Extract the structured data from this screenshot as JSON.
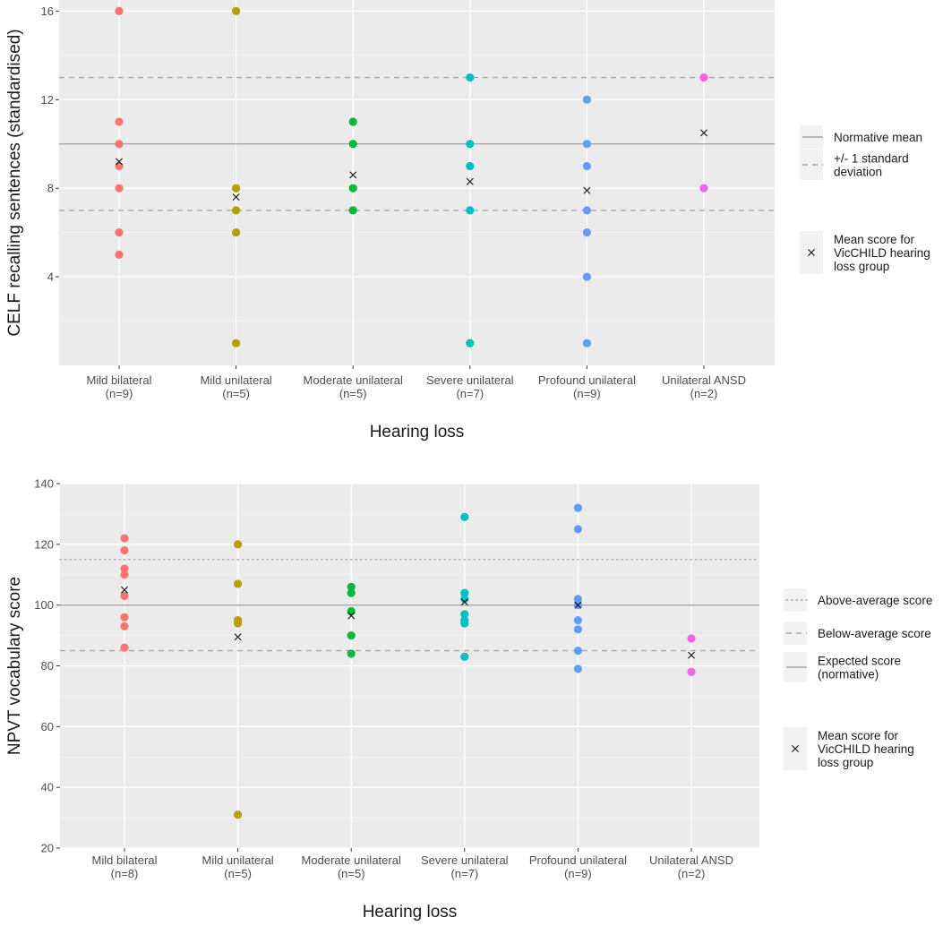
{
  "chart_data": [
    {
      "type": "scatter",
      "title": "",
      "xlabel": "Hearing loss",
      "ylabel": "CELF recalling sentences (standardised)",
      "ylim": [
        0,
        16.5
      ],
      "yticks": [
        4,
        8,
        12,
        16
      ],
      "grid": true,
      "categories": [
        "Mild bilateral",
        "Mild unilateral",
        "Moderate unilateral",
        "Severe unilateral",
        "Profound unilateral",
        "Unilateral ANSD"
      ],
      "category_counts": [
        "(n=9)",
        "(n=5)",
        "(n=5)",
        "(n=7)",
        "(n=9)",
        "(n=2)"
      ],
      "colors": [
        "#F8766D",
        "#B79F00",
        "#00BA38",
        "#00BFC4",
        "#619CFF",
        "#F564E3"
      ],
      "points": [
        [
          16,
          11,
          10,
          9,
          8,
          6,
          5
        ],
        [
          16,
          8,
          7,
          6,
          1
        ],
        [
          11,
          10,
          8,
          7
        ],
        [
          13,
          10,
          9,
          7,
          1
        ],
        [
          12,
          10,
          9,
          7,
          6,
          4,
          1
        ],
        [
          13,
          8
        ]
      ],
      "means": [
        9.2,
        7.6,
        8.6,
        8.3,
        7.9,
        10.5
      ],
      "reference_lines": [
        {
          "name": "Normative mean",
          "value": 10,
          "style": "solid"
        },
        {
          "name": "+/- 1 standard deviation (upper)",
          "value": 13,
          "style": "dashed"
        },
        {
          "name": "+/- 1 standard deviation (lower)",
          "value": 7,
          "style": "dashed"
        }
      ],
      "legend": {
        "placement": "right",
        "lines": [
          {
            "style": "solid",
            "label_lines": [
              "Normative mean"
            ]
          },
          {
            "style": "dashed",
            "label_lines": [
              "+/- 1 standard",
              "deviation"
            ]
          }
        ],
        "mean_marker": {
          "label_lines": [
            "Mean score for",
            "VicCHILD hearing",
            "loss group"
          ]
        }
      }
    },
    {
      "type": "scatter",
      "title": "",
      "xlabel": "Hearing loss",
      "ylabel": "NPVT vocabulary score",
      "ylim": [
        20,
        140
      ],
      "yticks": [
        20,
        40,
        60,
        80,
        100,
        120,
        140
      ],
      "grid": true,
      "categories": [
        "Mild bilateral",
        "Mild unilateral",
        "Moderate unilateral",
        "Severe unilateral",
        "Profound unilateral",
        "Unilateral ANSD"
      ],
      "category_counts": [
        "(n=8)",
        "(n=5)",
        "(n=5)",
        "(n=7)",
        "(n=9)",
        "(n=2)"
      ],
      "colors": [
        "#F8766D",
        "#B79F00",
        "#00BA38",
        "#00BFC4",
        "#619CFF",
        "#F564E3"
      ],
      "points": [
        [
          122,
          118,
          112,
          110,
          103,
          96,
          93,
          86
        ],
        [
          120,
          107,
          95,
          94,
          31
        ],
        [
          106,
          104,
          98,
          90,
          84
        ],
        [
          129,
          104,
          102,
          97,
          95,
          94,
          83
        ],
        [
          132,
          125,
          102,
          100,
          95,
          92,
          85,
          79
        ],
        [
          89,
          78
        ]
      ],
      "means": [
        105,
        89.5,
        96.5,
        101,
        100,
        83.5
      ],
      "reference_lines": [
        {
          "name": "Above-average score",
          "value": 115,
          "style": "dotted"
        },
        {
          "name": "Expected score (normative)",
          "value": 100,
          "style": "solid"
        },
        {
          "name": "Below-average score",
          "value": 85,
          "style": "dashed"
        }
      ],
      "legend": {
        "placement": "right",
        "lines": [
          {
            "style": "dotted",
            "label_lines": [
              "Above-average score"
            ]
          },
          {
            "style": "dashed",
            "label_lines": [
              "Below-average score"
            ]
          },
          {
            "style": "solid",
            "label_lines": [
              "Expected score",
              "(normative)"
            ]
          }
        ],
        "mean_marker": {
          "label_lines": [
            "Mean score for",
            "VicCHILD hearing",
            "loss group"
          ]
        }
      }
    }
  ]
}
